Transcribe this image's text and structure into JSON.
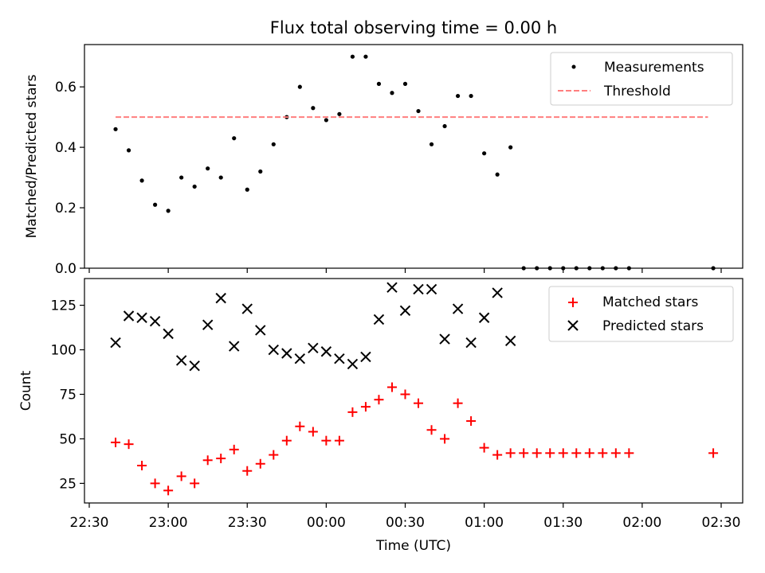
{
  "figure": {
    "title": "Flux total observing time = 0.00 h"
  },
  "chart_data": [
    {
      "type": "scatter",
      "panel": "top",
      "ylabel": "Matched/Predicted stars",
      "xlabel": "",
      "ylim": [
        0,
        0.74
      ],
      "yticks": [
        0.0,
        0.2,
        0.4,
        0.6
      ],
      "ytick_labels": [
        "0.0",
        "0.2",
        "0.4",
        "0.6"
      ],
      "xlim": [
        "22:30",
        "02:35"
      ],
      "xticks": [
        "22:30",
        "23:00",
        "23:30",
        "00:00",
        "00:30",
        "01:00",
        "01:30",
        "02:00",
        "02:30"
      ],
      "xtick_labels_shown": false,
      "grid": false,
      "legend": "top-right",
      "series": [
        {
          "name": "Measurements",
          "kind": "scatter",
          "marker": "dot",
          "color": "#000000",
          "x": [
            "22:40",
            "22:45",
            "22:50",
            "22:55",
            "23:00",
            "23:05",
            "23:10",
            "23:15",
            "23:20",
            "23:25",
            "23:30",
            "23:35",
            "23:40",
            "23:45",
            "23:50",
            "23:55",
            "00:00",
            "00:05",
            "00:10",
            "00:15",
            "00:20",
            "00:25",
            "00:30",
            "00:35",
            "00:40",
            "00:45",
            "00:50",
            "00:55",
            "01:00",
            "01:05",
            "01:10",
            "01:15",
            "01:20",
            "01:25",
            "01:30",
            "01:35",
            "01:40",
            "01:45",
            "01:50",
            "01:55",
            "02:27"
          ],
          "y": [
            0.46,
            0.39,
            0.29,
            0.21,
            0.19,
            0.3,
            0.27,
            0.33,
            0.3,
            0.43,
            0.26,
            0.32,
            0.41,
            0.5,
            0.6,
            0.53,
            0.49,
            0.51,
            0.7,
            0.7,
            0.61,
            0.58,
            0.61,
            0.52,
            0.41,
            0.47,
            0.57,
            0.57,
            0.38,
            0.31,
            0.4,
            0.0,
            0.0,
            0.0,
            0.0,
            0.0,
            0.0,
            0.0,
            0.0,
            0.0,
            0.0
          ]
        },
        {
          "name": "Threshold",
          "kind": "line",
          "style": "dashed",
          "color": "#ff7f7f",
          "x": [
            "22:40",
            "02:25"
          ],
          "y": [
            0.5,
            0.5
          ]
        }
      ]
    },
    {
      "type": "scatter",
      "panel": "bottom",
      "ylabel": "Count",
      "xlabel": "Time (UTC)",
      "ylim": [
        14,
        140
      ],
      "yticks": [
        25,
        50,
        75,
        100,
        125
      ],
      "ytick_labels": [
        "25",
        "50",
        "75",
        "100",
        "125"
      ],
      "xlim": [
        "22:30",
        "02:35"
      ],
      "xticks": [
        "22:30",
        "23:00",
        "23:30",
        "00:00",
        "00:30",
        "01:00",
        "01:30",
        "02:00",
        "02:30"
      ],
      "xtick_labels": [
        "22:30",
        "23:00",
        "23:30",
        "00:00",
        "00:30",
        "01:00",
        "01:30",
        "02:00",
        "02:30"
      ],
      "grid": false,
      "legend": "top-right",
      "series": [
        {
          "name": "Matched stars",
          "kind": "scatter",
          "marker": "plus",
          "color": "#ff0000",
          "x": [
            "22:40",
            "22:45",
            "22:50",
            "22:55",
            "23:00",
            "23:05",
            "23:10",
            "23:15",
            "23:20",
            "23:25",
            "23:30",
            "23:35",
            "23:40",
            "23:45",
            "23:50",
            "23:55",
            "00:00",
            "00:05",
            "00:10",
            "00:15",
            "00:20",
            "00:25",
            "00:30",
            "00:35",
            "00:40",
            "00:45",
            "00:50",
            "00:55",
            "01:00",
            "01:05",
            "01:10",
            "01:15",
            "01:20",
            "01:25",
            "01:30",
            "01:35",
            "01:40",
            "01:45",
            "01:50",
            "01:55",
            "02:27"
          ],
          "y": [
            48,
            47,
            35,
            25,
            21,
            29,
            25,
            38,
            39,
            44,
            32,
            36,
            41,
            49,
            57,
            54,
            49,
            49,
            65,
            68,
            72,
            79,
            75,
            70,
            55,
            50,
            70,
            60,
            45,
            41,
            42,
            42,
            42,
            42,
            42,
            42,
            42,
            42,
            42,
            42,
            42
          ]
        },
        {
          "name": "Predicted stars",
          "kind": "scatter",
          "marker": "x",
          "color": "#000000",
          "x": [
            "22:40",
            "22:45",
            "22:50",
            "22:55",
            "23:00",
            "23:05",
            "23:10",
            "23:15",
            "23:20",
            "23:25",
            "23:30",
            "23:35",
            "23:40",
            "23:45",
            "23:50",
            "23:55",
            "00:00",
            "00:05",
            "00:10",
            "00:15",
            "00:20",
            "00:25",
            "00:30",
            "00:35",
            "00:40",
            "00:45",
            "00:50",
            "00:55",
            "01:00",
            "01:05",
            "01:10"
          ],
          "y": [
            104,
            119,
            118,
            116,
            109,
            94,
            91,
            114,
            129,
            102,
            123,
            111,
            100,
            98,
            95,
            101,
            99,
            95,
            92,
            96,
            117,
            135,
            122,
            134,
            134,
            106,
            123,
            104,
            118,
            132,
            105
          ]
        }
      ]
    }
  ]
}
